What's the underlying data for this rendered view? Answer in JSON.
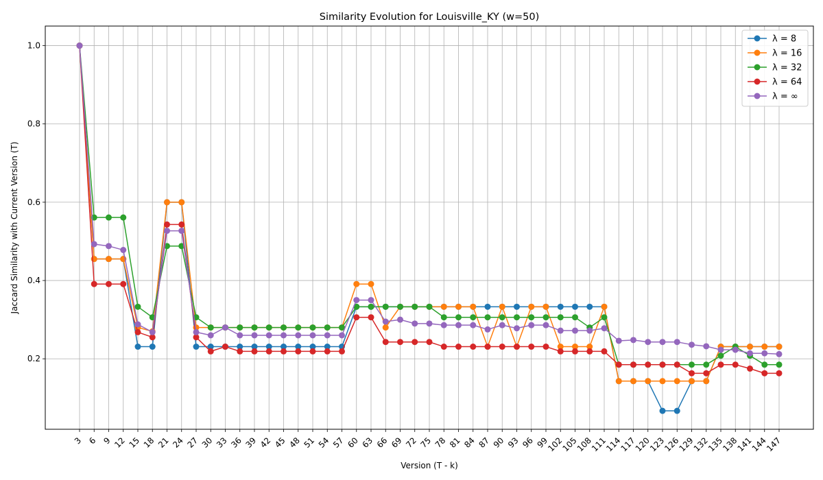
{
  "chart_data": {
    "type": "line",
    "title": "Similarity Evolution for Louisville_KY (w=50)",
    "xlabel": "Version (T - k)",
    "ylabel": "Jaccard Similarity with Current Version (T)",
    "ylim": [
      0.02,
      1.05
    ],
    "y_ticks": [
      0.2,
      0.4,
      0.6,
      0.8,
      1.0
    ],
    "grid": true,
    "legend_position": "top-right",
    "x": [
      3,
      6,
      9,
      12,
      15,
      18,
      21,
      24,
      27,
      30,
      33,
      36,
      39,
      42,
      45,
      48,
      51,
      54,
      57,
      60,
      63,
      66,
      69,
      72,
      75,
      78,
      81,
      84,
      87,
      90,
      93,
      96,
      99,
      102,
      105,
      108,
      111,
      114,
      117,
      120,
      123,
      126,
      129,
      132,
      135,
      138,
      141,
      144,
      147
    ],
    "series": [
      {
        "name": "λ = 8",
        "color": "#1f77b4",
        "values": [
          1.0,
          0.455,
          0.455,
          0.455,
          0.231,
          0.231,
          0.6,
          0.6,
          0.231,
          0.231,
          0.231,
          0.231,
          0.231,
          0.231,
          0.231,
          0.231,
          0.231,
          0.231,
          0.231,
          0.333,
          0.333,
          0.333,
          0.333,
          0.333,
          0.333,
          0.333,
          0.333,
          0.333,
          0.333,
          0.333,
          0.333,
          0.333,
          0.333,
          0.333,
          0.333,
          0.333,
          0.333,
          0.143,
          0.143,
          0.143,
          0.067,
          0.067,
          0.143,
          0.143,
          0.231,
          0.231,
          0.231,
          0.231,
          0.231
        ]
      },
      {
        "name": "λ = 16",
        "color": "#ff7f0e",
        "values": [
          1.0,
          0.455,
          0.455,
          0.455,
          0.28,
          0.27,
          0.6,
          0.6,
          0.28,
          0.28,
          0.28,
          0.28,
          0.28,
          0.28,
          0.28,
          0.28,
          0.28,
          0.28,
          0.28,
          0.391,
          0.391,
          0.28,
          0.333,
          0.333,
          0.333,
          0.333,
          0.333,
          0.333,
          0.231,
          0.333,
          0.231,
          0.333,
          0.333,
          0.231,
          0.231,
          0.231,
          0.333,
          0.143,
          0.143,
          0.143,
          0.143,
          0.143,
          0.143,
          0.143,
          0.231,
          0.231,
          0.231,
          0.231,
          0.231
        ]
      },
      {
        "name": "λ = 32",
        "color": "#2ca02c",
        "values": [
          1.0,
          0.561,
          0.561,
          0.561,
          0.333,
          0.306,
          0.488,
          0.488,
          0.306,
          0.28,
          0.28,
          0.28,
          0.28,
          0.28,
          0.28,
          0.28,
          0.28,
          0.28,
          0.28,
          0.333,
          0.333,
          0.333,
          0.333,
          0.333,
          0.333,
          0.306,
          0.306,
          0.306,
          0.306,
          0.306,
          0.306,
          0.306,
          0.306,
          0.306,
          0.306,
          0.28,
          0.306,
          0.185,
          0.185,
          0.185,
          0.185,
          0.185,
          0.185,
          0.185,
          0.208,
          0.231,
          0.208,
          0.185,
          0.185
        ]
      },
      {
        "name": "λ = 64",
        "color": "#d62728",
        "values": [
          1.0,
          0.391,
          0.391,
          0.391,
          0.268,
          0.255,
          0.543,
          0.543,
          0.255,
          0.219,
          0.231,
          0.219,
          0.219,
          0.219,
          0.219,
          0.219,
          0.219,
          0.219,
          0.219,
          0.306,
          0.306,
          0.243,
          0.243,
          0.243,
          0.243,
          0.231,
          0.231,
          0.231,
          0.231,
          0.231,
          0.231,
          0.231,
          0.231,
          0.219,
          0.219,
          0.219,
          0.219,
          0.185,
          0.185,
          0.185,
          0.185,
          0.185,
          0.163,
          0.163,
          0.185,
          0.185,
          0.175,
          0.163,
          0.163
        ]
      },
      {
        "name": "λ = ∞",
        "color": "#9467bd",
        "values": [
          1.0,
          0.493,
          0.488,
          0.478,
          0.288,
          0.268,
          0.527,
          0.527,
          0.268,
          0.26,
          0.28,
          0.26,
          0.26,
          0.26,
          0.26,
          0.26,
          0.26,
          0.26,
          0.26,
          0.35,
          0.35,
          0.295,
          0.3,
          0.29,
          0.29,
          0.286,
          0.286,
          0.286,
          0.275,
          0.286,
          0.278,
          0.286,
          0.286,
          0.272,
          0.272,
          0.272,
          0.278,
          0.246,
          0.248,
          0.243,
          0.243,
          0.243,
          0.236,
          0.232,
          0.223,
          0.223,
          0.214,
          0.214,
          0.212
        ]
      }
    ]
  }
}
